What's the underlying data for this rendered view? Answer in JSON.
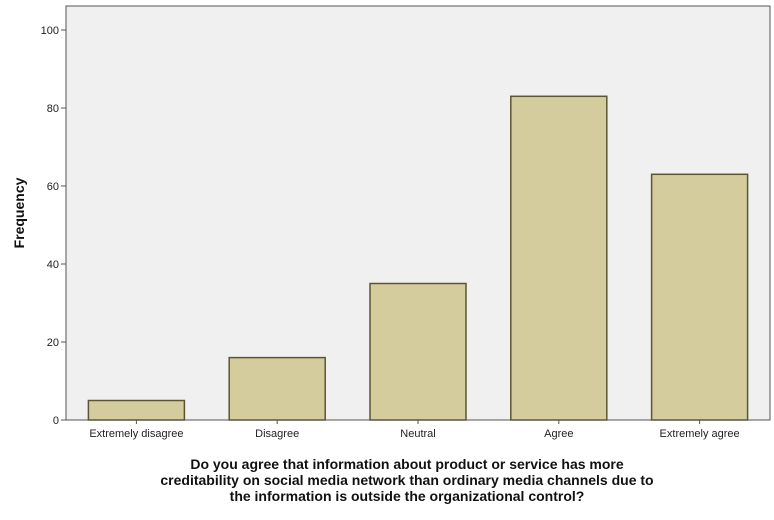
{
  "chart_data": {
    "type": "bar",
    "categories": [
      "Extremely disagree",
      "Disagree",
      "Neutral",
      "Agree",
      "Extremely agree"
    ],
    "values": [
      5,
      16,
      35,
      83,
      63
    ],
    "ylabel": "Frequency",
    "xlabel_lines": [
      "Do you agree that information about product or service has more",
      "creditability on social media network than ordinary media channels due to",
      "the information is outside the organizational control?"
    ],
    "ylim": [
      0,
      100
    ],
    "yticks": [
      0,
      20,
      40,
      60,
      80,
      100
    ],
    "grid": false,
    "colors": {
      "bar_fill": "#d4cc9c",
      "bar_stroke": "#5a5632",
      "plot_bg": "#f0f0f0",
      "axis": "#555555"
    }
  }
}
